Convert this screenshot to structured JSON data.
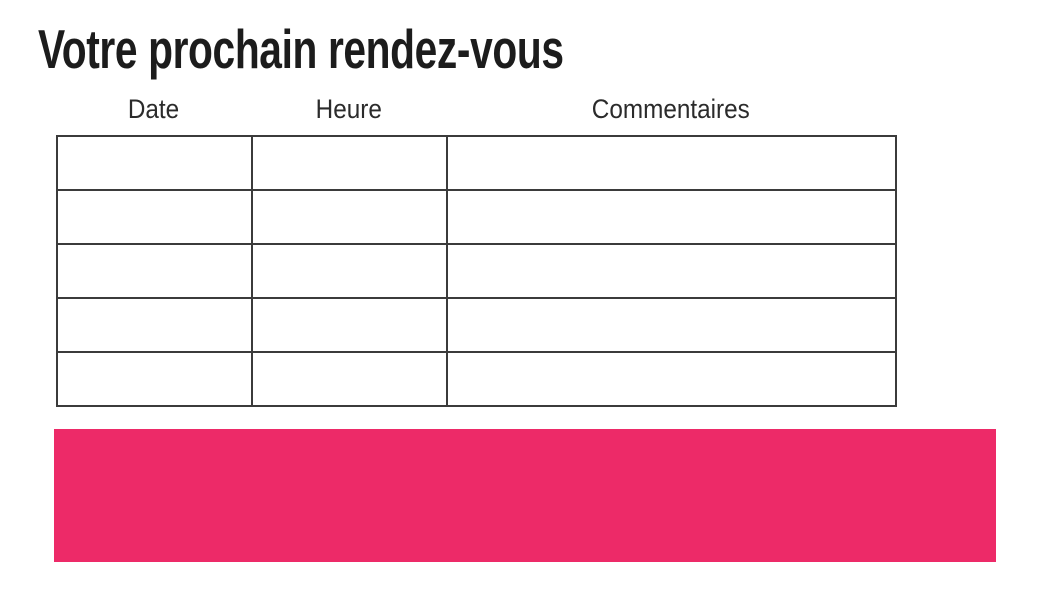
{
  "title": "Votre prochain rendez-vous",
  "table": {
    "headers": [
      "Date",
      "Heure",
      "Commentaires"
    ],
    "rows": [
      [
        "",
        "",
        ""
      ],
      [
        "",
        "",
        ""
      ],
      [
        "",
        "",
        ""
      ],
      [
        "",
        "",
        ""
      ],
      [
        "",
        "",
        ""
      ]
    ]
  },
  "colors": {
    "accent_pink": "#ED2A68",
    "table_border": "#3b3b3b",
    "title_text": "#1c1c1c",
    "header_text": "#2b2b2b"
  }
}
